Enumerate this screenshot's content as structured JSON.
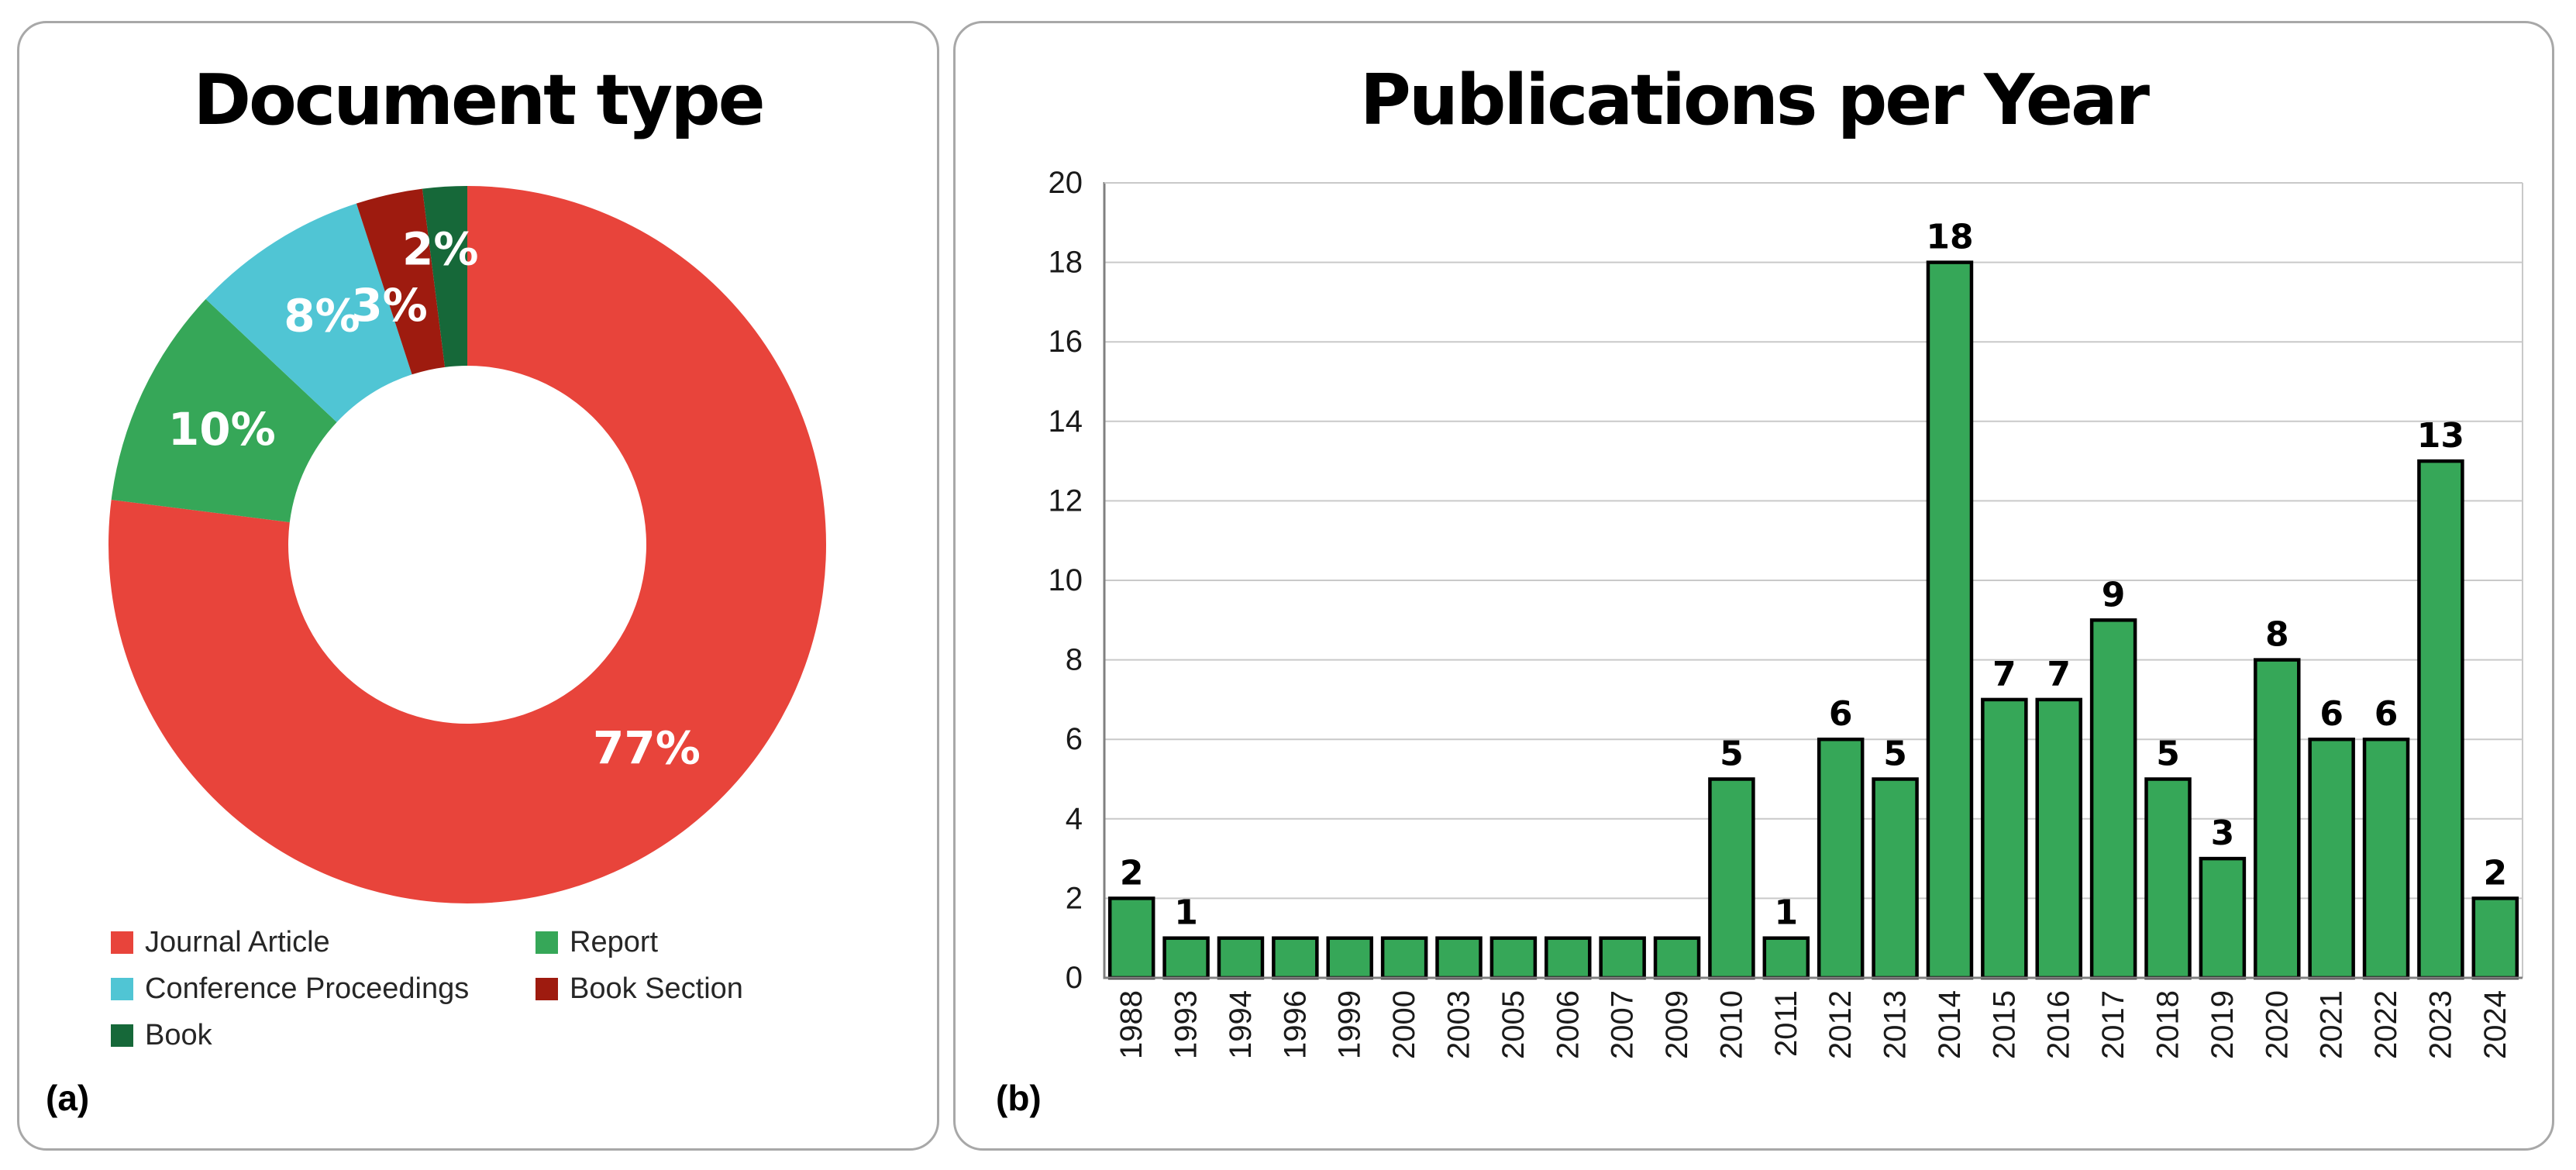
{
  "panel_a": {
    "corner_label": "(a)"
  },
  "panel_b": {
    "corner_label": "(b)"
  },
  "chart_data": [
    {
      "type": "pie",
      "title": "Document type",
      "donut": true,
      "labels": [
        "Journal Article",
        "Report",
        "Conference Proceedings",
        "Book Section",
        "Book"
      ],
      "values": [
        77,
        10,
        8,
        3,
        2
      ],
      "value_labels": [
        "77%",
        "10%",
        "8%",
        "3%",
        "2%"
      ],
      "colors": [
        "#E8443B",
        "#36A758",
        "#50C5D4",
        "#9E1B0F",
        "#166839"
      ],
      "legend_position": "bottom"
    },
    {
      "type": "bar",
      "title": "Publications per Year",
      "categories": [
        "1988",
        "1993",
        "1994",
        "1996",
        "1999",
        "2000",
        "2003",
        "2005",
        "2006",
        "2007",
        "2009",
        "2010",
        "2011",
        "2012",
        "2013",
        "2014",
        "2015",
        "2016",
        "2017",
        "2018",
        "2019",
        "2020",
        "2021",
        "2022",
        "2023",
        "2024"
      ],
      "values": [
        2,
        1,
        1,
        1,
        1,
        1,
        1,
        1,
        1,
        1,
        1,
        5,
        1,
        6,
        5,
        18,
        7,
        7,
        9,
        5,
        3,
        8,
        6,
        6,
        13,
        2
      ],
      "data_labels": [
        "2",
        "1",
        "",
        "",
        "",
        "",
        "",
        "",
        "",
        "",
        "",
        "5",
        "1",
        "6",
        "5",
        "18",
        "7",
        "7",
        "9",
        "5",
        "3",
        "8",
        "6",
        "6",
        "13",
        "2"
      ],
      "xlabel": "",
      "ylabel": "",
      "ylim": [
        0,
        20
      ],
      "ytick_step": 2,
      "yticks": [
        0,
        2,
        4,
        6,
        8,
        10,
        12,
        14,
        16,
        18,
        20
      ],
      "bar_color": "#36A758",
      "bar_border_color": "#000000",
      "gridlines": true,
      "legend_position": "none"
    }
  ]
}
